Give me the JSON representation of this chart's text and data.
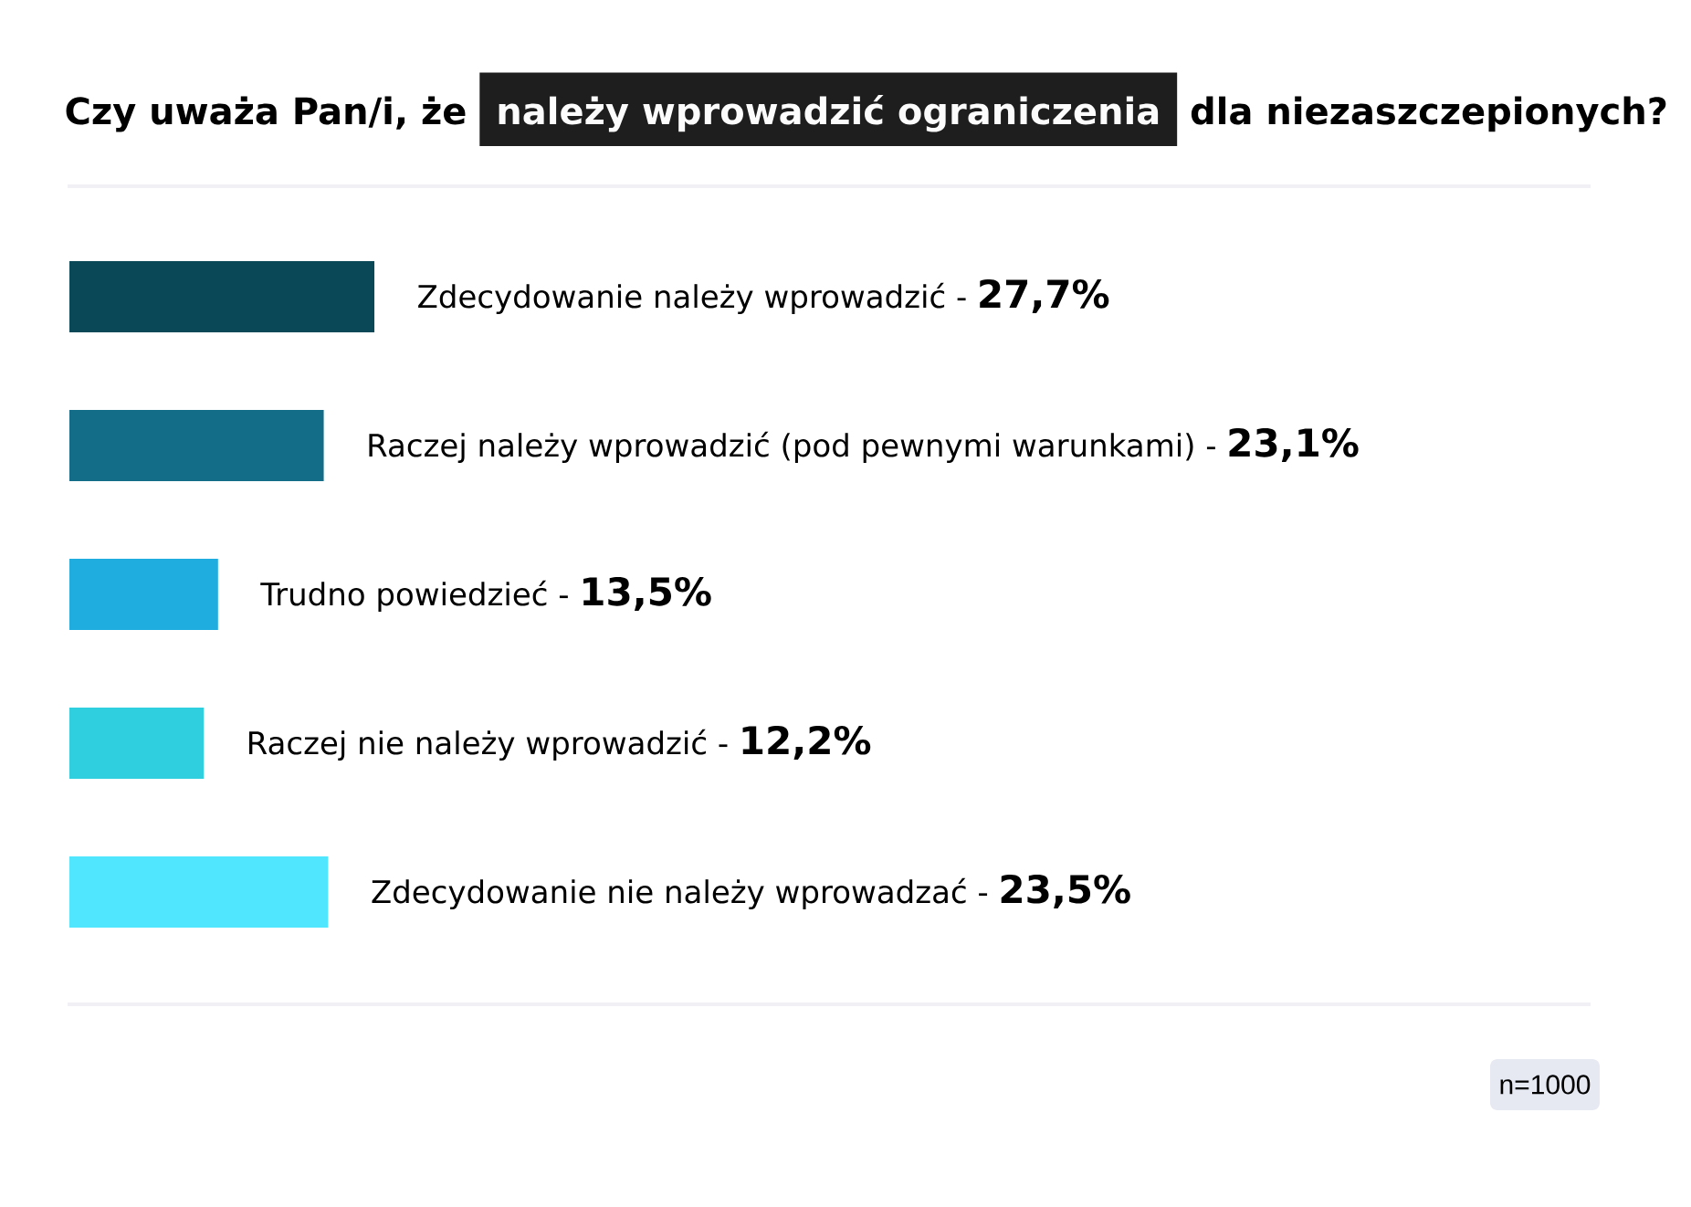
{
  "chart_data": {
    "type": "bar",
    "orientation": "horizontal",
    "title": "Czy uważa Pan/i, że **należy wprowadzić ograniczenia** dla niezaszczepionych?",
    "categories": [
      null,
      null,
      null,
      null,
      null
    ],
    "values": [
      27.7,
      23.1,
      13.5,
      12.2,
      23.5
    ],
    "colors": [
      "#0a4858",
      "#136c88",
      "#1faddf",
      "#30cfdf",
      "#50e6fd"
    ],
    "value_labels": [
      "Zdecydowanie należy wprowadzić - **27,7%**",
      "Raczej należy wprowadzić (pod pewnymi warunkami) - **23,1%**",
      "Trudno powiedzieć - **13,5%**",
      "Raczej nie należy wprowadzić - **12,2%**",
      "Zdecydowanie nie należy wprowadzać - **23,5%**"
    ],
    "annotations": [
      "n=1000"
    ]
  }
}
